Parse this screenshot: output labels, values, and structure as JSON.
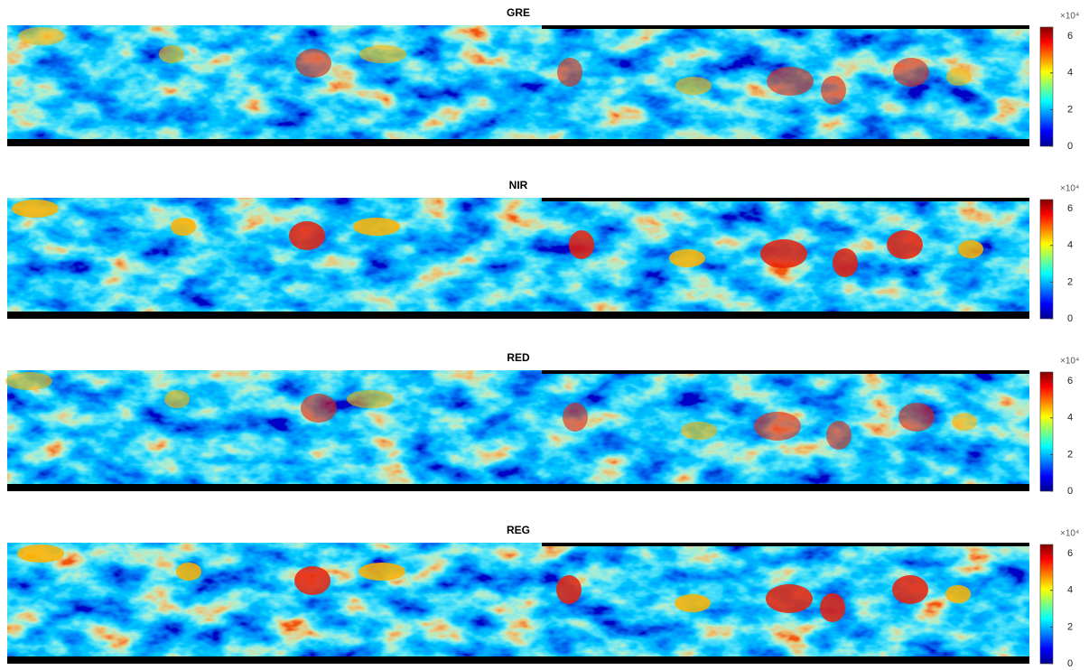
{
  "chart_data": [
    {
      "type": "heatmap",
      "title": "GRE",
      "colorbar": {
        "lim": [
          0,
          6.5
        ],
        "ticks": [
          0,
          2,
          4,
          6
        ],
        "scale_label": "×10⁴",
        "colormap": "jet"
      }
    },
    {
      "type": "heatmap",
      "title": "NIR",
      "colorbar": {
        "lim": [
          0,
          6.5
        ],
        "ticks": [
          0,
          2,
          4,
          6
        ],
        "scale_label": "×10⁴",
        "colormap": "jet"
      }
    },
    {
      "type": "heatmap",
      "title": "RED",
      "colorbar": {
        "lim": [
          0,
          6.5
        ],
        "ticks": [
          0,
          2,
          4,
          6
        ],
        "scale_label": "×10⁴",
        "colormap": "jet"
      }
    },
    {
      "type": "heatmap",
      "title": "REG",
      "colorbar": {
        "lim": [
          0,
          6.5
        ],
        "ticks": [
          0,
          2,
          4,
          6
        ],
        "scale_label": "×10⁴",
        "colormap": "jet"
      }
    }
  ]
}
